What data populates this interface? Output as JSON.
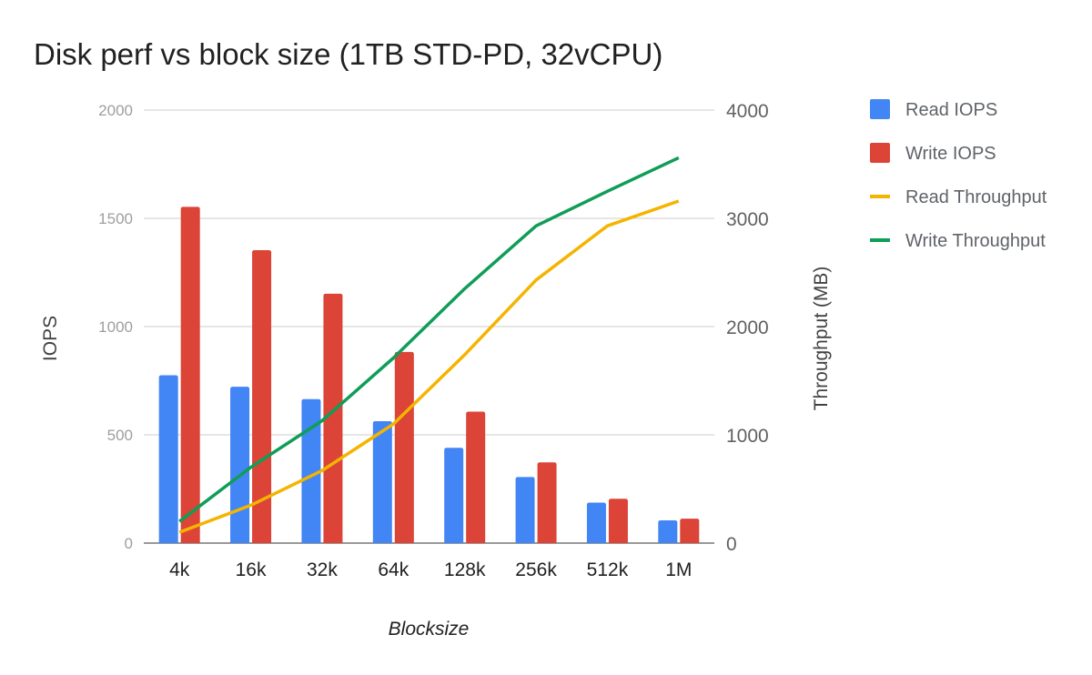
{
  "chart_data": {
    "type": "bar",
    "title": "Disk perf vs block size (1TB STD-PD, 32vCPU)",
    "xlabel": "Blocksize",
    "ylabel": "IOPS",
    "y2label": "Throughput (MB)",
    "categories": [
      "4k",
      "16k",
      "32k",
      "64k",
      "128k",
      "256k",
      "512k",
      "1M"
    ],
    "ylim": [
      0,
      2000
    ],
    "y2lim": [
      0,
      4000
    ],
    "yticks": [
      "0",
      "500",
      "1000",
      "1500",
      "2000"
    ],
    "y2ticks": [
      "0",
      "1000",
      "2000",
      "3000",
      "4000"
    ],
    "grid": true,
    "legend_position": "right",
    "series": [
      {
        "name": "Read IOPS",
        "kind": "bar",
        "axis": "left",
        "color": "#4285f4",
        "values": [
          775,
          722,
          665,
          563,
          440,
          305,
          187,
          105
        ]
      },
      {
        "name": "Write IOPS",
        "kind": "bar",
        "axis": "left",
        "color": "#db4437",
        "values": [
          1553,
          1353,
          1152,
          883,
          607,
          373,
          205,
          113
        ]
      },
      {
        "name": "Read Throughput",
        "kind": "line",
        "axis": "right",
        "color": "#f4b400",
        "values": [
          100,
          350,
          670,
          1100,
          1740,
          2430,
          2930,
          3160
        ]
      },
      {
        "name": "Write Throughput",
        "kind": "line",
        "axis": "right",
        "color": "#0f9d58",
        "values": [
          200,
          700,
          1130,
          1710,
          2350,
          2930,
          3250,
          3560
        ]
      }
    ]
  }
}
